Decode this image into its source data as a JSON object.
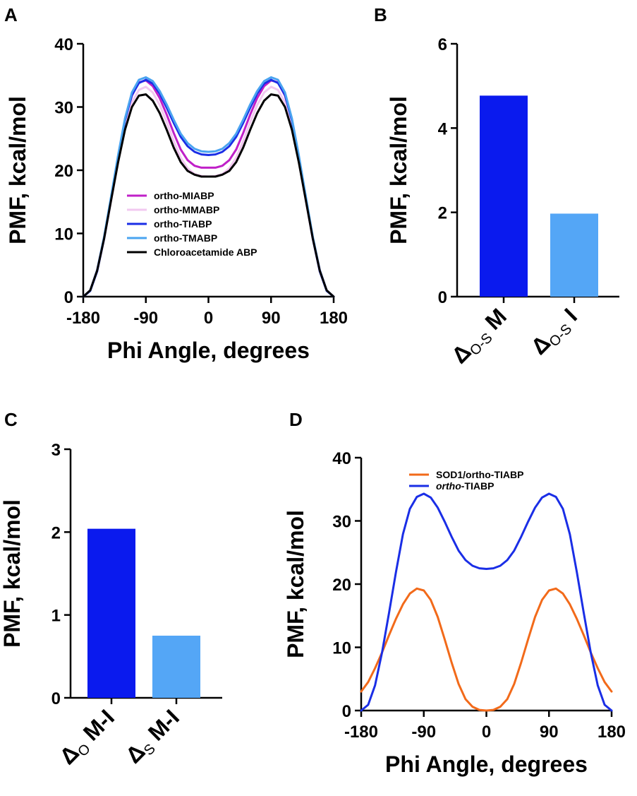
{
  "panels": {
    "A": "A",
    "B": "B",
    "C": "C",
    "D": "D"
  },
  "chart_data": [
    {
      "id": "A",
      "type": "line",
      "xlabel": "Phi Angle, degrees",
      "ylabel": "PMF, kcal/mol",
      "xlim": [
        -180,
        180
      ],
      "ylim": [
        0,
        40
      ],
      "xticks": [
        "-180",
        "-90",
        "0",
        "90",
        "180"
      ],
      "yticks": [
        "0",
        "10",
        "20",
        "30",
        "40"
      ],
      "legend_position": "center",
      "series": [
        {
          "name": "ortho-MIABP",
          "color": "#c020c8",
          "x": [
            -180,
            -170,
            -160,
            -150,
            -140,
            -130,
            -120,
            -110,
            -100,
            -90,
            -80,
            -70,
            -60,
            -50,
            -40,
            -30,
            -20,
            -10,
            0,
            10,
            20,
            30,
            40,
            50,
            60,
            70,
            80,
            90,
            100,
            110,
            120,
            130,
            140,
            150,
            160,
            170,
            180
          ],
          "y": [
            0,
            1.0,
            4.2,
            9.4,
            15.6,
            22.0,
            27.8,
            31.8,
            33.9,
            34.2,
            33.3,
            31.4,
            28.8,
            25.9,
            23.3,
            21.6,
            20.7,
            20.4,
            20.4,
            20.4,
            20.7,
            21.6,
            23.3,
            25.9,
            28.8,
            31.4,
            33.3,
            34.2,
            33.9,
            31.8,
            27.8,
            22.0,
            15.6,
            9.4,
            4.2,
            1.0,
            0
          ]
        },
        {
          "name": "ortho-MMABP",
          "color": "#f2c8f0",
          "x": [
            -180,
            -170,
            -160,
            -150,
            -140,
            -130,
            -120,
            -110,
            -100,
            -90,
            -80,
            -70,
            -60,
            -50,
            -40,
            -30,
            -20,
            -10,
            0,
            10,
            20,
            30,
            40,
            50,
            60,
            70,
            80,
            90,
            100,
            110,
            120,
            130,
            140,
            150,
            160,
            170,
            180
          ],
          "y": [
            0,
            1.0,
            4.0,
            9.1,
            15.1,
            21.3,
            26.8,
            30.7,
            32.7,
            33.2,
            32.3,
            30.3,
            27.6,
            24.6,
            22.0,
            20.3,
            19.4,
            19.1,
            19.0,
            19.1,
            19.4,
            20.3,
            22.0,
            24.6,
            27.6,
            30.3,
            32.3,
            33.2,
            32.7,
            30.7,
            26.8,
            21.3,
            15.1,
            9.1,
            4.0,
            1.0,
            0
          ]
        },
        {
          "name": "ortho-TIABP",
          "color": "#1a2ee6",
          "x": [
            -180,
            -170,
            -160,
            -150,
            -140,
            -130,
            -120,
            -110,
            -100,
            -90,
            -80,
            -70,
            -60,
            -50,
            -40,
            -30,
            -20,
            -10,
            0,
            10,
            20,
            30,
            40,
            50,
            60,
            70,
            80,
            90,
            100,
            110,
            120,
            130,
            140,
            150,
            160,
            170,
            180
          ],
          "y": [
            0,
            0.9,
            4.0,
            9.2,
            15.4,
            21.9,
            27.9,
            31.9,
            33.8,
            34.3,
            33.7,
            32.1,
            29.9,
            27.5,
            25.3,
            23.8,
            22.9,
            22.5,
            22.4,
            22.5,
            22.9,
            23.8,
            25.3,
            27.5,
            29.9,
            32.1,
            33.7,
            34.3,
            33.8,
            31.9,
            27.9,
            21.9,
            15.4,
            9.2,
            4.0,
            0.9,
            0
          ]
        },
        {
          "name": "ortho-TMABP",
          "color": "#4aa4f0",
          "x": [
            -180,
            -170,
            -160,
            -150,
            -140,
            -130,
            -120,
            -110,
            -100,
            -90,
            -80,
            -70,
            -60,
            -50,
            -40,
            -30,
            -20,
            -10,
            0,
            10,
            20,
            30,
            40,
            50,
            60,
            70,
            80,
            90,
            100,
            110,
            120,
            130,
            140,
            150,
            160,
            170,
            180
          ],
          "y": [
            0,
            1.0,
            4.2,
            9.5,
            15.8,
            22.3,
            28.2,
            32.3,
            34.3,
            34.7,
            34.1,
            32.5,
            30.4,
            28.0,
            25.8,
            24.3,
            23.4,
            23.0,
            22.9,
            23.0,
            23.4,
            24.3,
            25.8,
            28.0,
            30.4,
            32.5,
            34.1,
            34.7,
            34.3,
            32.3,
            28.2,
            22.3,
            15.8,
            9.5,
            4.2,
            1.0,
            0
          ]
        },
        {
          "name": "Chloroacetamide ABP",
          "color": "#000000",
          "x": [
            -180,
            -170,
            -160,
            -150,
            -140,
            -130,
            -120,
            -110,
            -100,
            -90,
            -80,
            -70,
            -60,
            -50,
            -40,
            -30,
            -20,
            -10,
            0,
            10,
            20,
            30,
            40,
            50,
            60,
            70,
            80,
            90,
            100,
            110,
            120,
            130,
            140,
            150,
            160,
            170,
            180
          ],
          "y": [
            0,
            1.0,
            4.1,
            9.2,
            15.2,
            21.2,
            26.4,
            30.0,
            31.8,
            32.0,
            31.0,
            29.0,
            26.4,
            23.6,
            21.3,
            19.9,
            19.3,
            19.0,
            19.0,
            19.0,
            19.3,
            19.9,
            21.3,
            23.6,
            26.4,
            29.0,
            31.0,
            32.0,
            31.8,
            30.0,
            26.4,
            21.2,
            15.2,
            9.2,
            4.1,
            1.0,
            0
          ]
        }
      ]
    },
    {
      "id": "B",
      "type": "bar",
      "ylabel": "PMF, kcal/mol",
      "ylim": [
        0,
        6
      ],
      "yticks": [
        "0",
        "2",
        "4",
        "6"
      ],
      "categories": [
        {
          "main": "Δ",
          "sub": "O-S",
          "rest": " M"
        },
        {
          "main": "Δ",
          "sub": "O-S",
          "rest": " I"
        }
      ],
      "values": [
        4.77,
        1.97
      ],
      "colors": [
        "#0a1aee",
        "#54a6f6"
      ]
    },
    {
      "id": "C",
      "type": "bar",
      "ylabel": "PMF, kcal/mol",
      "ylim": [
        0,
        3
      ],
      "yticks": [
        "0",
        "1",
        "2",
        "3"
      ],
      "categories": [
        {
          "main": "Δ",
          "sub": "O",
          "rest": " M-I"
        },
        {
          "main": "Δ",
          "sub": "S",
          "rest": " M-I"
        }
      ],
      "values": [
        2.04,
        0.75
      ],
      "colors": [
        "#0a1aee",
        "#54a6f6"
      ]
    },
    {
      "id": "D",
      "type": "line",
      "xlabel": "Phi Angle, degrees",
      "ylabel": "PMF, kcal/mol",
      "xlim": [
        -180,
        180
      ],
      "ylim": [
        0,
        40
      ],
      "xticks": [
        "-180",
        "-90",
        "0",
        "90",
        "180"
      ],
      "yticks": [
        "0",
        "10",
        "20",
        "30",
        "40"
      ],
      "legend_position": "top-center",
      "series": [
        {
          "name": "SOD1/ortho-TIABP",
          "color": "#f26a1a",
          "x": [
            -180,
            -170,
            -160,
            -150,
            -140,
            -130,
            -120,
            -110,
            -100,
            -90,
            -80,
            -70,
            -60,
            -50,
            -40,
            -30,
            -20,
            -10,
            0,
            10,
            20,
            30,
            40,
            50,
            60,
            70,
            80,
            90,
            100,
            110,
            120,
            130,
            140,
            150,
            160,
            170,
            180
          ],
          "y": [
            3.0,
            4.5,
            6.7,
            9.2,
            11.9,
            14.5,
            16.8,
            18.5,
            19.3,
            19.0,
            17.5,
            14.8,
            11.3,
            7.6,
            4.2,
            1.8,
            0.6,
            0.1,
            0,
            0.1,
            0.6,
            1.8,
            4.2,
            7.6,
            11.3,
            14.8,
            17.5,
            19.0,
            19.3,
            18.5,
            16.8,
            14.5,
            11.9,
            9.2,
            6.7,
            4.5,
            3.0
          ]
        },
        {
          "name_parts": [
            "ortho",
            "-TIABP"
          ],
          "color": "#1a2ee6",
          "x": [
            -180,
            -170,
            -160,
            -150,
            -140,
            -130,
            -120,
            -110,
            -100,
            -90,
            -80,
            -70,
            -60,
            -50,
            -40,
            -30,
            -20,
            -10,
            0,
            10,
            20,
            30,
            40,
            50,
            60,
            70,
            80,
            90,
            100,
            110,
            120,
            130,
            140,
            150,
            160,
            170,
            180
          ],
          "y": [
            0,
            0.9,
            4.0,
            9.2,
            15.4,
            21.9,
            27.9,
            31.9,
            33.8,
            34.3,
            33.7,
            32.1,
            29.9,
            27.5,
            25.3,
            23.8,
            22.9,
            22.5,
            22.4,
            22.5,
            22.9,
            23.8,
            25.3,
            27.5,
            29.9,
            32.1,
            33.7,
            34.3,
            33.8,
            31.9,
            27.9,
            21.9,
            15.4,
            9.2,
            4.0,
            0.9,
            0
          ]
        }
      ]
    }
  ]
}
